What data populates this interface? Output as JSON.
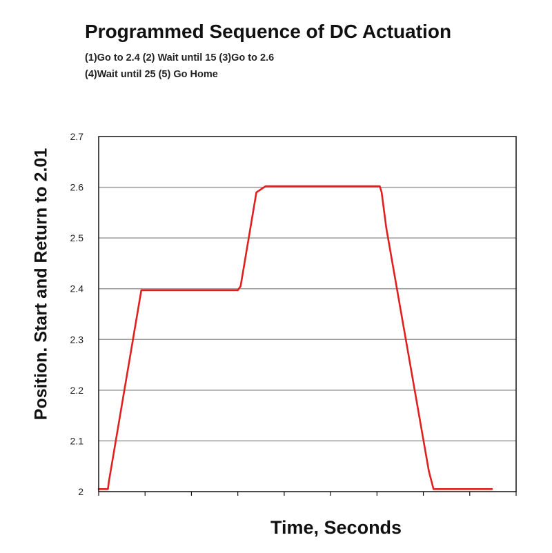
{
  "chart_data": {
    "type": "line",
    "title": "Programmed Sequence of DC Actuation",
    "subtitle_lines": [
      "(1)Go to 2.4  (2) Wait until 15  (3)Go to 2.6",
      "(4)Wait until 25 (5) Go Home"
    ],
    "xlabel": "Time, Seconds",
    "ylabel": "Position. Start and Return to 2.01",
    "xlim": [
      0,
      45
    ],
    "ylim": [
      2,
      2.7
    ],
    "y_ticks": [
      "2",
      "2.1",
      "2.2",
      "2.3",
      "2.4",
      "2.5",
      "2.6",
      "2.7"
    ],
    "x_tick_count": 9,
    "x_tick_labels_shown": false,
    "grid": "horizontal",
    "legend": "none",
    "series": [
      {
        "color": "#e0201e",
        "x": [
          0,
          1.0,
          1.1,
          4.6,
          15.0,
          15.3,
          17.0,
          18.0,
          30.3,
          30.5,
          31.0,
          35.6,
          36.1,
          42.4
        ],
        "y": [
          2.005,
          2.005,
          2.02,
          2.397,
          2.397,
          2.405,
          2.59,
          2.602,
          2.602,
          2.59,
          2.52,
          2.04,
          2.005,
          2.005
        ]
      }
    ]
  }
}
